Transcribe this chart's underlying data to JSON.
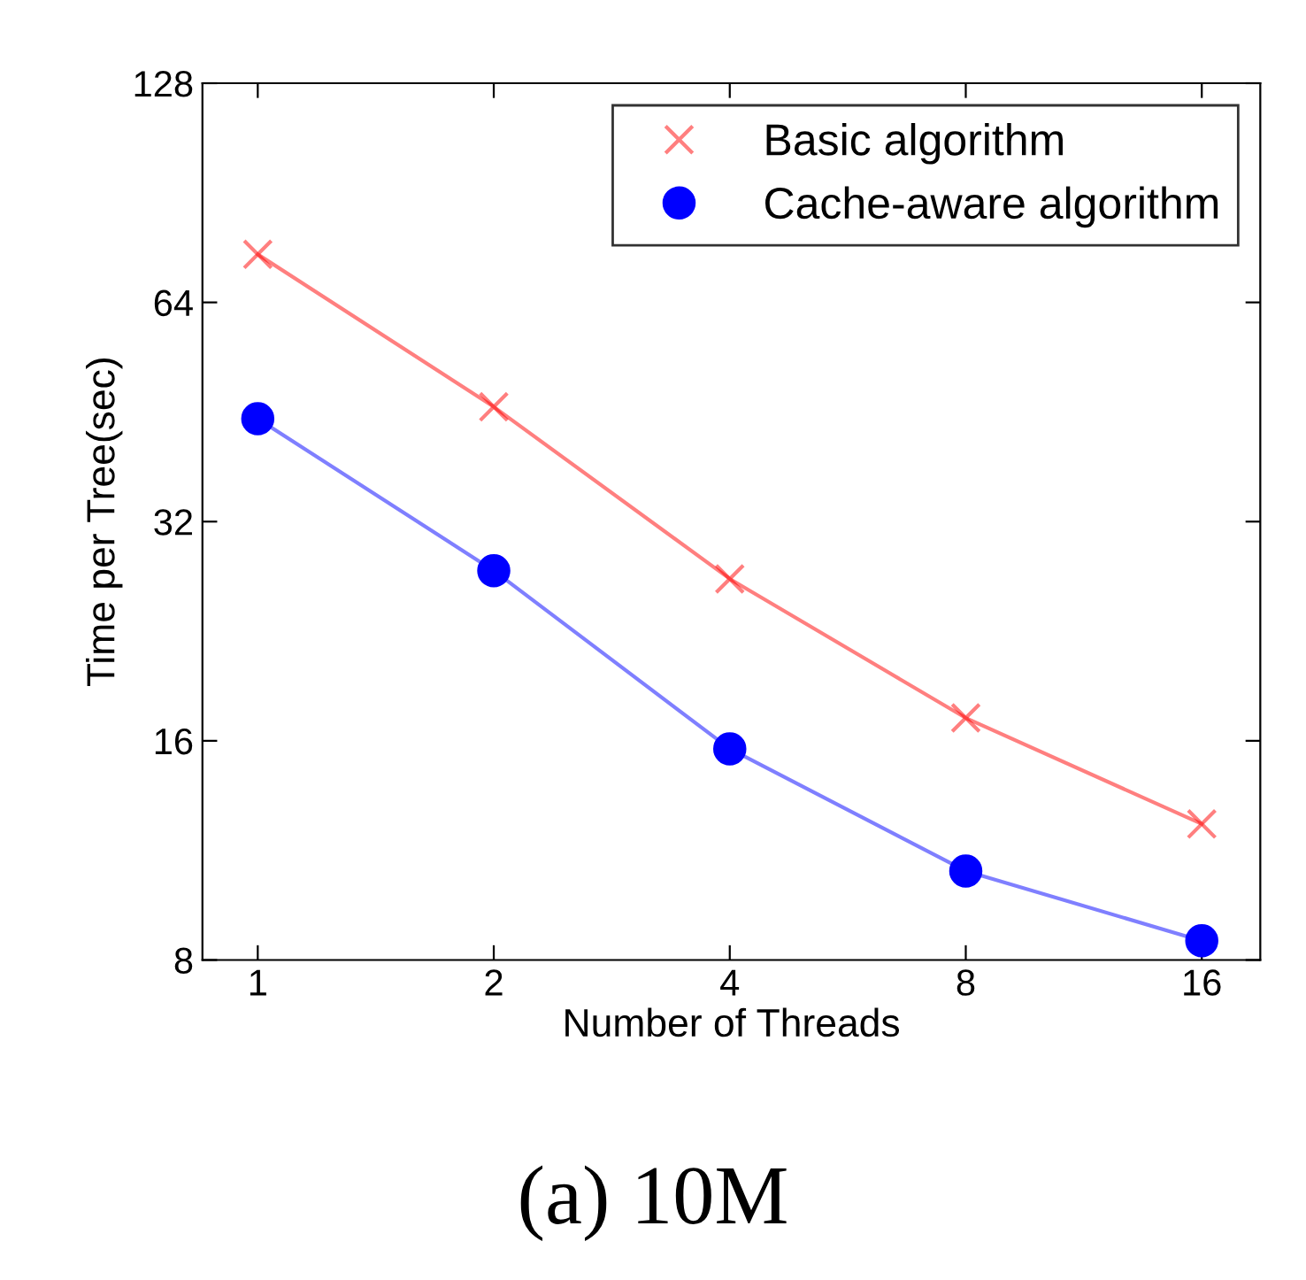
{
  "chart_data": {
    "type": "line",
    "title": "(a) 10M",
    "xlabel": "Number of Threads",
    "ylabel": "Time per Tree(sec)",
    "x": [
      1,
      2,
      4,
      8,
      16
    ],
    "series": [
      {
        "name": "Basic algorithm",
        "color": "#ff0000",
        "marker": "cross",
        "values": [
          74.5,
          46,
          26.7,
          17.2,
          12.3
        ]
      },
      {
        "name": "Cache-aware algorithm",
        "color": "#0000ff",
        "marker": "circle",
        "values": [
          44.3,
          27.4,
          15.6,
          10.6,
          8.5
        ]
      }
    ],
    "log": "xy",
    "xlim": [
      0.85,
      19
    ],
    "ylim": [
      8,
      128
    ],
    "xticks": [
      1,
      2,
      4,
      8,
      16
    ],
    "yticks": [
      8,
      16,
      32,
      64,
      128
    ],
    "grid": false,
    "legend": "top right"
  }
}
